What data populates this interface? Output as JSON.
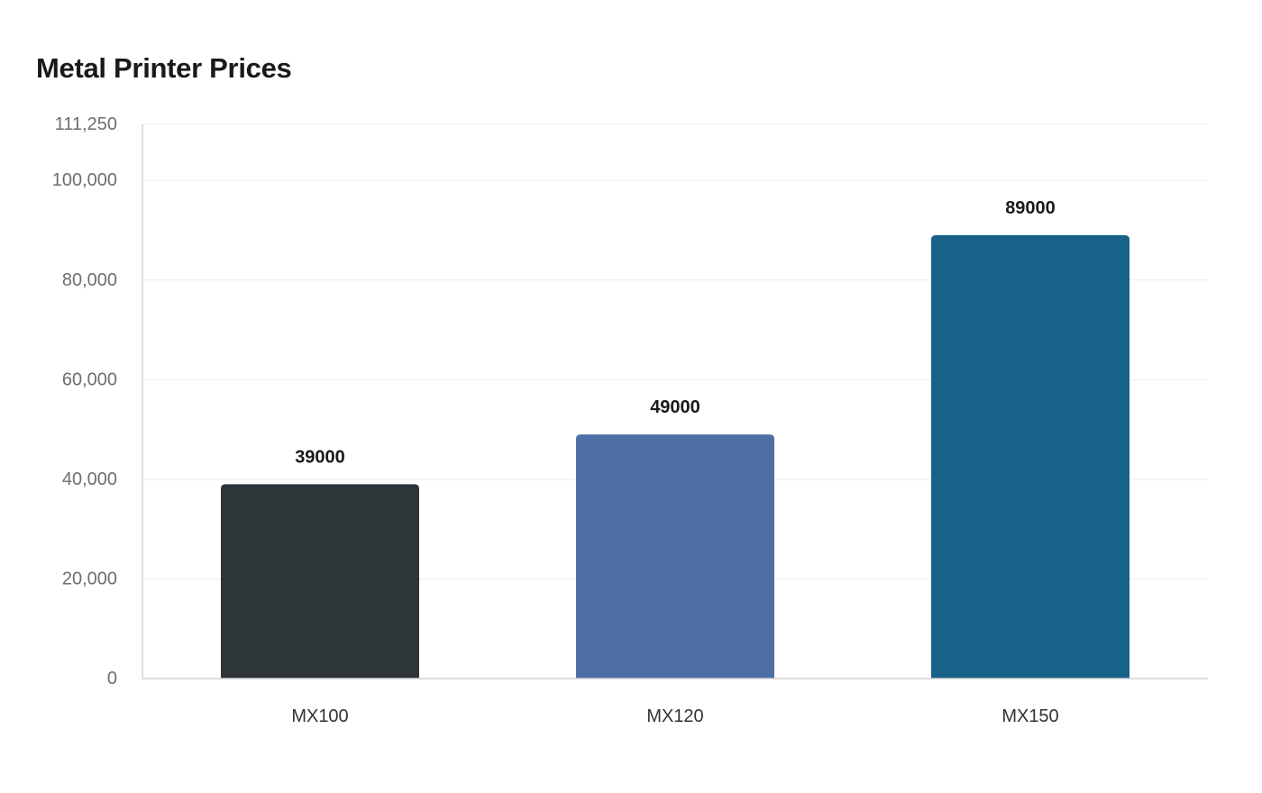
{
  "chart_data": {
    "type": "bar",
    "title": "Metal Printer Prices",
    "xlabel": "",
    "ylabel": "",
    "categories": [
      "MX100",
      "MX120",
      "MX150"
    ],
    "values": [
      39000,
      49000,
      89000
    ],
    "data_labels": [
      "39000",
      "49000",
      "89000"
    ],
    "colors": [
      "#2e3538",
      "#4d6fa6",
      "#186188"
    ],
    "ylim": [
      0,
      111250
    ],
    "yticks": [
      0,
      20000,
      40000,
      60000,
      80000,
      100000,
      111250
    ],
    "ytick_labels": [
      "0",
      "20,000",
      "40,000",
      "60,000",
      "80,000",
      "100,000",
      "111,250"
    ],
    "grid": true,
    "legend": "none"
  }
}
